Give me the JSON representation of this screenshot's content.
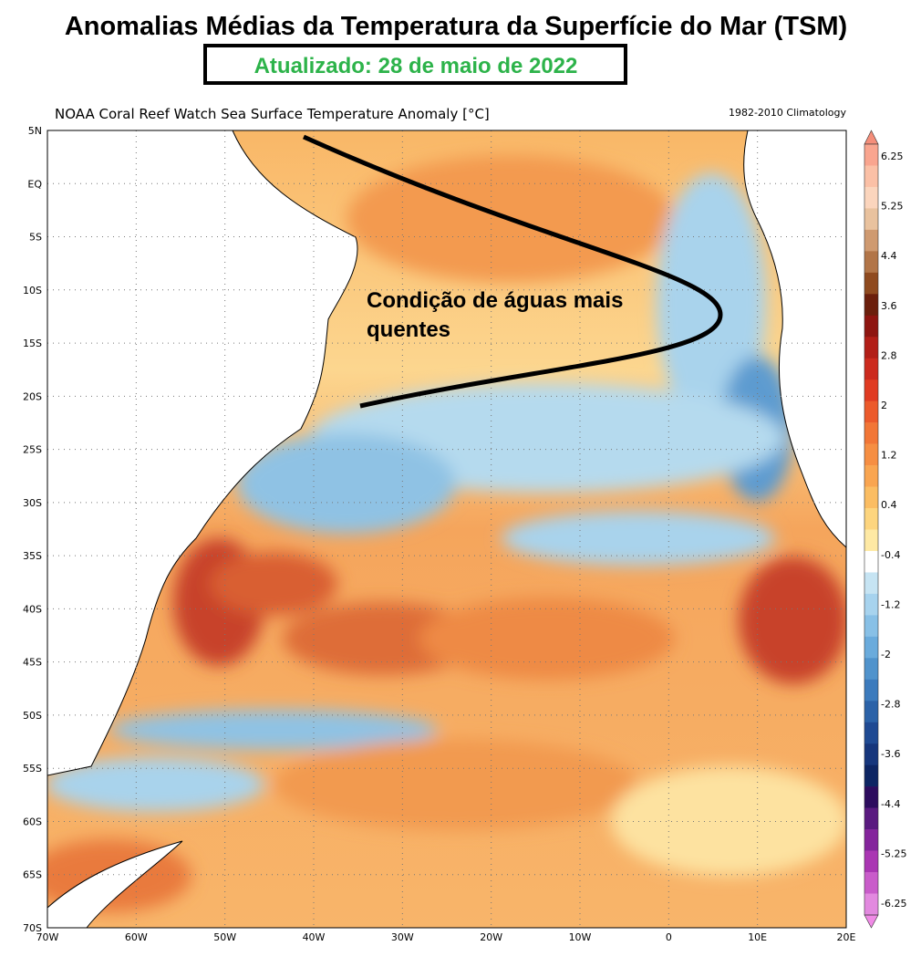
{
  "title": "Anomalias Médias da Temperatura da Superfície do Mar (TSM)",
  "subtitle": "Atualizado: 28 de maio de 2022",
  "map": {
    "title": "NOAA Coral Reef Watch Sea Surface Temperature Anomaly [°C]",
    "climatology": "1982-2010 Climatology",
    "latitudes": [
      "5N",
      "EQ",
      "5S",
      "10S",
      "15S",
      "20S",
      "25S",
      "30S",
      "35S",
      "40S",
      "45S",
      "50S",
      "55S",
      "60S",
      "65S",
      "70S"
    ],
    "longitudes": [
      "70W",
      "60W",
      "50W",
      "40W",
      "30W",
      "20W",
      "10W",
      "0",
      "10E",
      "20E"
    ],
    "annotation": [
      "Condição de águas mais",
      "quentes"
    ]
  },
  "colorbar": {
    "labels": [
      6.25,
      5.25,
      4.4,
      3.6,
      2.8,
      2,
      1.2,
      0.4,
      -0.4,
      -1.2,
      -2,
      -2.8,
      -3.6,
      -4.4,
      -5.25,
      -6.25
    ]
  }
}
